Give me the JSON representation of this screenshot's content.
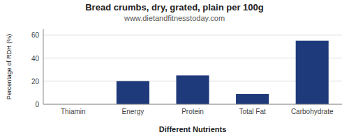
{
  "chart_data": {
    "type": "bar",
    "title": "Bread crumbs, dry, grated, plain per 100g",
    "subtitle": "www.dietandfitnesstoday.com",
    "xlabel": "Different Nutrients",
    "ylabel": "Percentage of RDH (%)",
    "categories": [
      "Thiamin",
      "Energy",
      "Protein",
      "Total Fat",
      "Carbohydrate"
    ],
    "values": [
      0,
      20,
      25,
      9,
      55
    ],
    "color": "#1f3a7a",
    "ylim": [
      0,
      65
    ],
    "yticks": [
      0,
      20,
      40,
      60
    ],
    "grid": true
  }
}
